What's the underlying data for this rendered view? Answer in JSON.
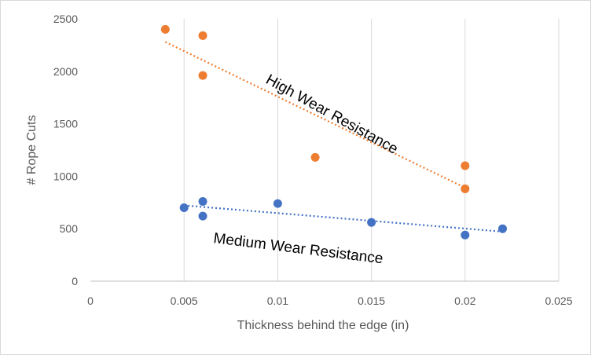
{
  "chart_data": {
    "type": "scatter",
    "xlabel": "Thickness behind the edge (in)",
    "ylabel": "# Rope Cuts",
    "xlim": [
      0,
      0.025
    ],
    "ylim": [
      0,
      2500
    ],
    "x_ticks": [
      "0",
      "0.005",
      "0.01",
      "0.015",
      "0.02",
      "0.025"
    ],
    "y_ticks": [
      "0",
      "500",
      "1000",
      "1500",
      "2000",
      "2500"
    ],
    "grid": "vertical gridlines",
    "legend": "none",
    "series": [
      {
        "color": "#ed7d31",
        "points": [
          {
            "x": 0.004,
            "y": 2400
          },
          {
            "x": 0.006,
            "y": 2340
          },
          {
            "x": 0.006,
            "y": 1960
          },
          {
            "x": 0.012,
            "y": 1180
          },
          {
            "x": 0.02,
            "y": 1100
          },
          {
            "x": 0.02,
            "y": 880
          }
        ],
        "trendline": {
          "x": [
            0.004,
            0.02
          ],
          "y": [
            2280,
            890
          ]
        }
      },
      {
        "color": "#4472c4",
        "points": [
          {
            "x": 0.005,
            "y": 700
          },
          {
            "x": 0.006,
            "y": 760
          },
          {
            "x": 0.006,
            "y": 620
          },
          {
            "x": 0.01,
            "y": 740
          },
          {
            "x": 0.015,
            "y": 560
          },
          {
            "x": 0.02,
            "y": 440
          },
          {
            "x": 0.022,
            "y": 500
          }
        ],
        "trendline": {
          "x": [
            0.005,
            0.022
          ],
          "y": [
            722,
            472
          ]
        }
      }
    ],
    "annotations": [
      "High Wear Resistance",
      "Medium Wear Resistance"
    ]
  }
}
